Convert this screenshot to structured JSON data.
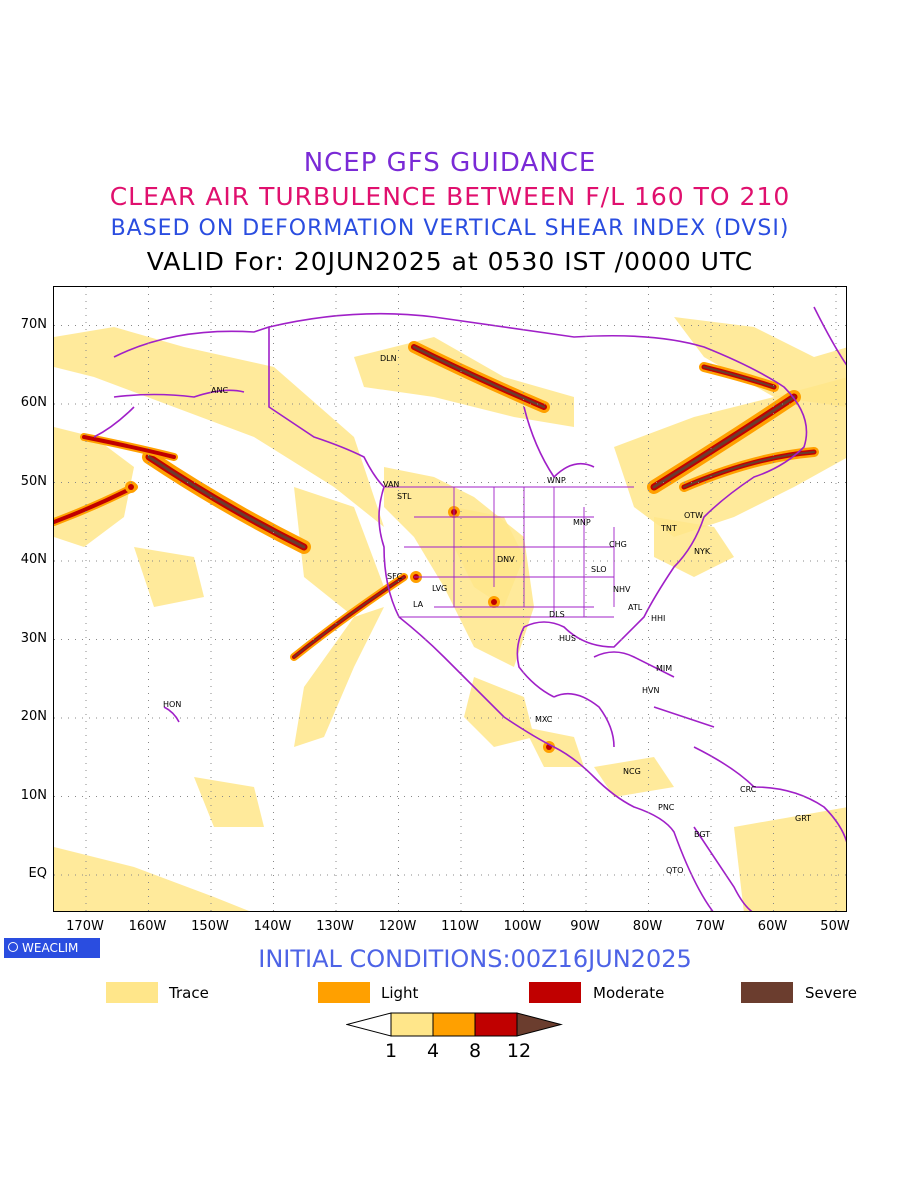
{
  "titles": {
    "line1": "NCEP GFS GUIDANCE",
    "line2": "CLEAR AIR TURBULENCE BETWEEN F/L 160 TO 210",
    "line3": "BASED ON DEFORMATION VERTICAL SHEAR INDEX (DVSI)",
    "line4": "VALID For: 20JUN2025 at 0530 IST /0000 UTC"
  },
  "colors": {
    "line1": "#7a2ad6",
    "line2": "#e0106e",
    "line3": "#2a4de0",
    "line4": "#000000",
    "trace": "#ffe68a",
    "light": "#ffa000",
    "moderate": "#c00000",
    "severe": "#6b3d2e",
    "coast": "#a020c8",
    "grid": "#888888"
  },
  "map": {
    "lat_labels": [
      "70N",
      "60N",
      "50N",
      "40N",
      "30N",
      "20N",
      "10N",
      "EQ"
    ],
    "lon_labels": [
      "170W",
      "160W",
      "150W",
      "140W",
      "130W",
      "120W",
      "110W",
      "100W",
      "90W",
      "80W",
      "70W",
      "60W",
      "50W"
    ],
    "cities": [
      "ANC",
      "DLN",
      "VAN",
      "STL",
      "WNP",
      "MNP",
      "OTW",
      "TNT",
      "NYK",
      "CHG",
      "DNV",
      "SLO",
      "SFC",
      "LVG",
      "LA",
      "NHV",
      "ATL",
      "DLS",
      "HHI",
      "HUS",
      "MIM",
      "HVN",
      "HON",
      "MXC",
      "NCG",
      "CRC",
      "GRT",
      "PNC",
      "BGT",
      "QTO"
    ]
  },
  "branding": {
    "logo": "WEACLIM"
  },
  "initial_conditions": "INITIAL CONDITIONS:00Z16JUN2025",
  "legend": [
    {
      "label": "Trace",
      "color": "#ffe68a"
    },
    {
      "label": "Light",
      "color": "#ffa000"
    },
    {
      "label": "Moderate",
      "color": "#c00000"
    },
    {
      "label": "Severe",
      "color": "#6b3d2e"
    }
  ],
  "colorbar": {
    "ticks": [
      "1",
      "4",
      "8",
      "12"
    ],
    "colors": [
      "#ffffff",
      "#ffe68a",
      "#ffa000",
      "#c00000",
      "#6b3d2e"
    ]
  }
}
